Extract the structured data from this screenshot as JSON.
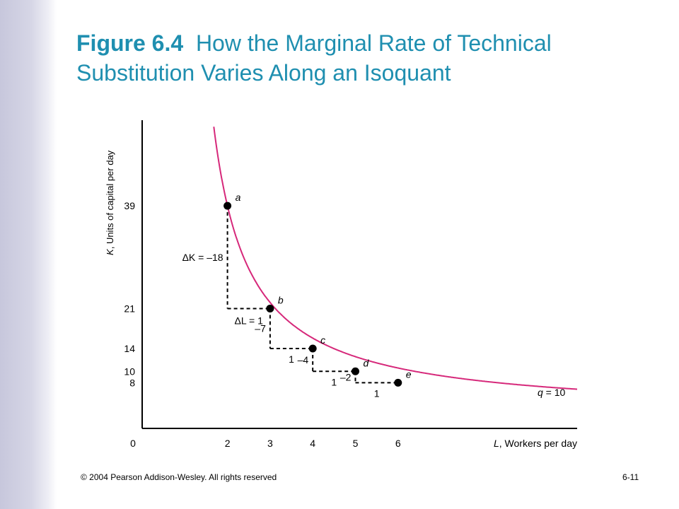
{
  "slide": {
    "figure_number": "Figure 6.4",
    "title_line1": "How the Marginal Rate of Technical",
    "title_line2": "Substitution Varies Along an Isoquant",
    "footer_copyright": "© 2004 Pearson Addison-Wesley. All rights reserved",
    "footer_page": "6-11"
  },
  "colors": {
    "title": "#1f8fb0",
    "curve": "#d6287a",
    "axis": "#000000",
    "band": "#c7c7dc"
  },
  "chart_data": {
    "type": "line",
    "title": "",
    "xlabel_var": "L",
    "xlabel": ", Workers per day",
    "ylabel_var": "K",
    "ylabel": ", Units of capital per day",
    "x_ticks": [
      0,
      2,
      3,
      4,
      5,
      6
    ],
    "y_ticks": [
      39,
      21,
      14,
      10,
      8
    ],
    "xlim": [
      0,
      10.2
    ],
    "ylim": [
      0,
      54
    ],
    "grid": false,
    "series": [
      {
        "name": "q = 10",
        "label_var": "q",
        "label_rest": " = 10"
      }
    ],
    "points": [
      {
        "label": "a",
        "x": 2,
        "y": 39
      },
      {
        "label": "b",
        "x": 3,
        "y": 21
      },
      {
        "label": "c",
        "x": 4,
        "y": 14
      },
      {
        "label": "d",
        "x": 5,
        "y": 10
      },
      {
        "label": "e",
        "x": 6,
        "y": 8
      }
    ],
    "steps": [
      {
        "dK": "–18",
        "dK_prefix": "ΔK = ",
        "dL": "1",
        "dL_prefix": "ΔL = "
      },
      {
        "dK": "–7",
        "dL": "1"
      },
      {
        "dK": "–4",
        "dL": "1"
      },
      {
        "dK": "–2",
        "dL": "1"
      }
    ]
  }
}
